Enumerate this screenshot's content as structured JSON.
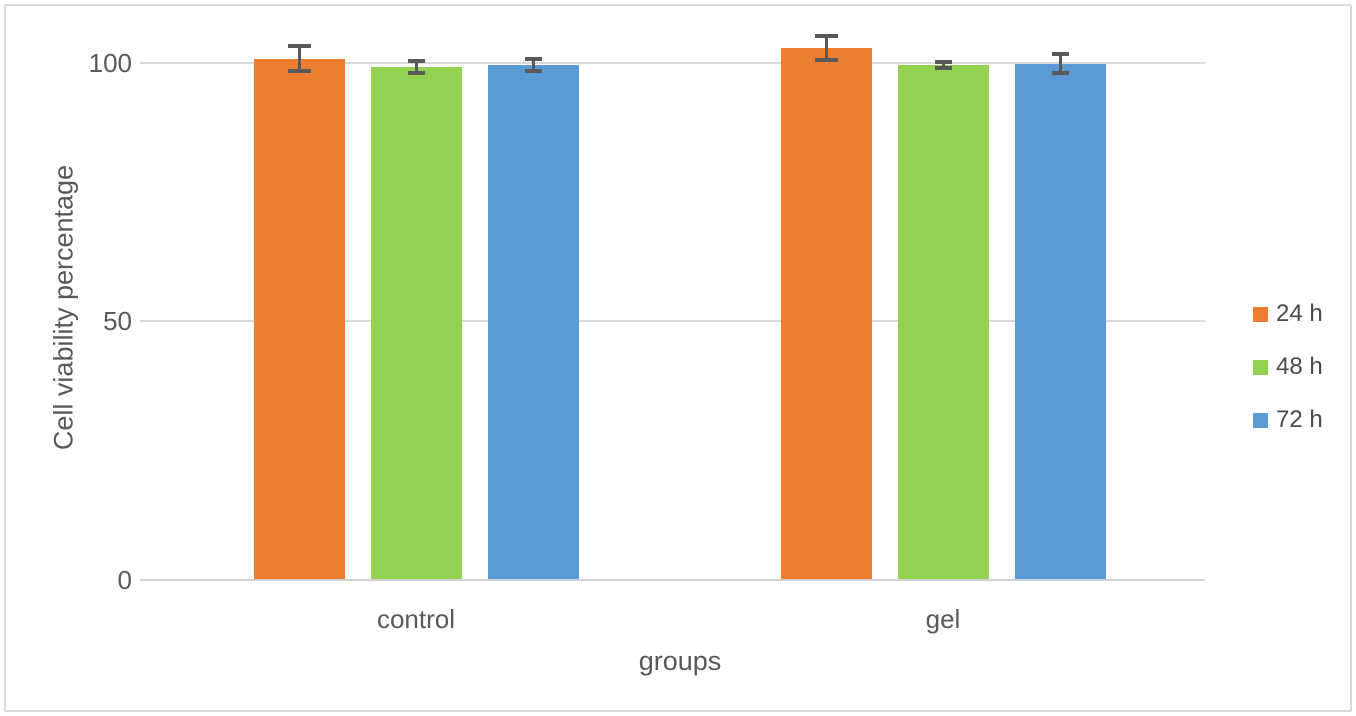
{
  "chart_data": {
    "type": "bar",
    "title": "",
    "xlabel": "groups",
    "ylabel": "Cell viability percentage",
    "categories": [
      "control",
      "gel"
    ],
    "series": [
      {
        "name": "24 h",
        "color": "#ED7D31",
        "values": [
          100.8,
          102.8
        ],
        "errors": [
          2.4,
          2.3
        ]
      },
      {
        "name": "48 h",
        "color": "#92D050",
        "values": [
          99.2,
          99.5
        ],
        "errors": [
          1.1,
          0.6
        ]
      },
      {
        "name": "72 h",
        "color": "#5B9BD5",
        "values": [
          99.6,
          99.8
        ],
        "errors": [
          1.2,
          1.8
        ]
      }
    ],
    "yticks": [
      0,
      50,
      100
    ],
    "ylim": [
      0,
      107
    ],
    "grid": true,
    "legend_position": "right",
    "error_bars": true,
    "colors": {
      "axis_text": "#595959",
      "gridline": "#D9D9D9",
      "error_bar": "#595959",
      "frame_border": "#D9D9D9",
      "background": "#FFFFFF"
    }
  }
}
